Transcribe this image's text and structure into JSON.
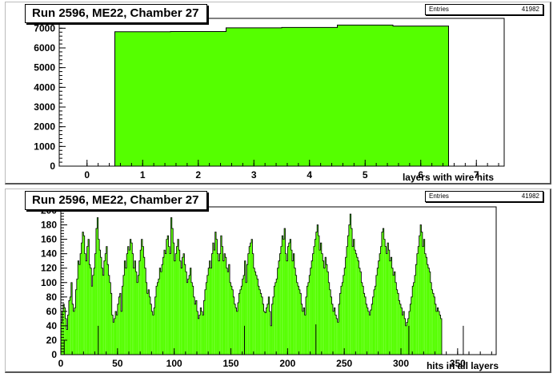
{
  "chart_data": [
    {
      "type": "bar",
      "title": "Run 2596, ME22, Chamber 27",
      "stats": {
        "label": "Entries",
        "value": "41982"
      },
      "xlabel": "layers with wire hits",
      "ylabel": "",
      "xlim": [
        -0.5,
        7.5
      ],
      "ylim": [
        0,
        7500
      ],
      "xticks": [
        0,
        1,
        2,
        3,
        4,
        5,
        6,
        7
      ],
      "yticks": [
        0,
        1000,
        2000,
        3000,
        4000,
        5000,
        6000,
        7000
      ],
      "bins": [
        {
          "x0": 0.5,
          "x1": 1.5,
          "value": 6820
        },
        {
          "x0": 1.5,
          "x1": 2.5,
          "value": 6830
        },
        {
          "x0": 2.5,
          "x1": 3.5,
          "value": 7020
        },
        {
          "x0": 3.5,
          "x1": 4.5,
          "value": 7040
        },
        {
          "x0": 4.5,
          "x1": 5.5,
          "value": 7160
        },
        {
          "x0": 5.5,
          "x1": 6.5,
          "value": 7110
        }
      ],
      "fill_color": "#55ff00",
      "line_color": "#000000"
    },
    {
      "type": "bar",
      "title": "Run 2596, ME22, Chamber 27",
      "stats": {
        "label": "Entries",
        "value": "41982"
      },
      "xlabel": "hits in all layers",
      "ylabel": "",
      "xlim": [
        0,
        384
      ],
      "ylim": [
        0,
        205
      ],
      "xticks": [
        0,
        50,
        100,
        150,
        200,
        250,
        300,
        350
      ],
      "yticks": [
        0,
        20,
        40,
        60,
        80,
        100,
        120,
        140,
        160,
        180,
        200
      ],
      "bin_width": 1,
      "values": [
        45,
        60,
        70,
        65,
        50,
        35,
        55,
        75,
        80,
        100,
        70,
        60,
        65,
        90,
        105,
        130,
        125,
        140,
        155,
        170,
        165,
        140,
        130,
        150,
        160,
        125,
        120,
        95,
        110,
        120,
        140,
        175,
        190,
        160,
        145,
        135,
        120,
        110,
        130,
        140,
        150,
        125,
        110,
        100,
        85,
        55,
        45,
        50,
        60,
        55,
        70,
        80,
        85,
        60,
        95,
        110,
        130,
        120,
        140,
        150,
        145,
        160,
        155,
        140,
        120,
        130,
        115,
        100,
        110,
        130,
        145,
        160,
        150,
        135,
        120,
        100,
        85,
        90,
        80,
        70,
        60,
        55,
        65,
        80,
        95,
        100,
        105,
        120,
        115,
        125,
        135,
        145,
        140,
        160,
        165,
        150,
        140,
        190,
        175,
        155,
        130,
        140,
        150,
        160,
        145,
        130,
        120,
        135,
        140,
        125,
        115,
        100,
        105,
        110,
        120,
        100,
        95,
        80,
        70,
        75,
        60,
        50,
        55,
        65,
        60,
        55,
        75,
        90,
        100,
        110,
        120,
        130,
        120,
        140,
        155,
        145,
        170,
        160,
        140,
        130,
        140,
        165,
        150,
        130,
        140,
        135,
        120,
        115,
        125,
        100,
        95,
        90,
        80,
        70,
        65,
        60,
        72,
        85,
        90,
        95,
        105,
        110,
        130,
        100,
        125,
        140,
        150,
        155,
        160,
        140,
        120,
        115,
        110,
        105,
        95,
        90,
        85,
        80,
        70,
        60,
        58,
        65,
        70,
        80,
        60,
        40,
        70,
        80,
        95,
        100,
        105,
        120,
        130,
        140,
        150,
        165,
        160,
        175,
        140,
        130,
        150,
        155,
        160,
        145,
        130,
        140,
        120,
        110,
        100,
        95,
        90,
        85,
        70,
        60,
        65,
        55,
        80,
        95,
        100,
        110,
        120,
        130,
        140,
        150,
        160,
        170,
        180,
        165,
        145,
        155,
        140,
        130,
        120,
        135,
        125,
        115,
        100,
        90,
        80,
        70,
        60,
        65,
        55,
        50,
        45,
        70,
        85,
        95,
        100,
        110,
        120,
        135,
        150,
        165,
        180,
        195,
        175,
        150,
        160,
        145,
        140,
        135,
        130,
        120,
        115,
        100,
        95,
        85,
        80,
        70,
        65,
        60,
        55,
        62,
        70,
        80,
        90,
        95,
        110,
        120,
        130,
        140,
        150,
        170,
        175,
        160,
        150,
        140,
        155,
        145,
        130,
        135,
        120,
        110,
        115,
        100,
        90,
        85,
        75,
        70,
        65,
        55,
        60,
        50,
        40,
        45,
        50,
        60,
        70,
        80,
        95,
        100,
        110,
        125,
        140,
        150,
        165,
        180,
        170,
        150,
        160,
        140,
        135,
        125,
        120,
        115,
        100,
        90,
        85,
        80,
        70,
        60,
        65,
        60,
        55,
        50
      ],
      "spikes": [
        {
          "x": 3,
          "value": 20
        },
        {
          "x": 33,
          "value": 40
        },
        {
          "x": 162,
          "value": 40
        },
        {
          "x": 225,
          "value": 42
        },
        {
          "x": 307,
          "value": 40
        },
        {
          "x": 355,
          "value": 40
        }
      ],
      "fill_color": "#55ff00",
      "line_color": "#000000"
    }
  ]
}
